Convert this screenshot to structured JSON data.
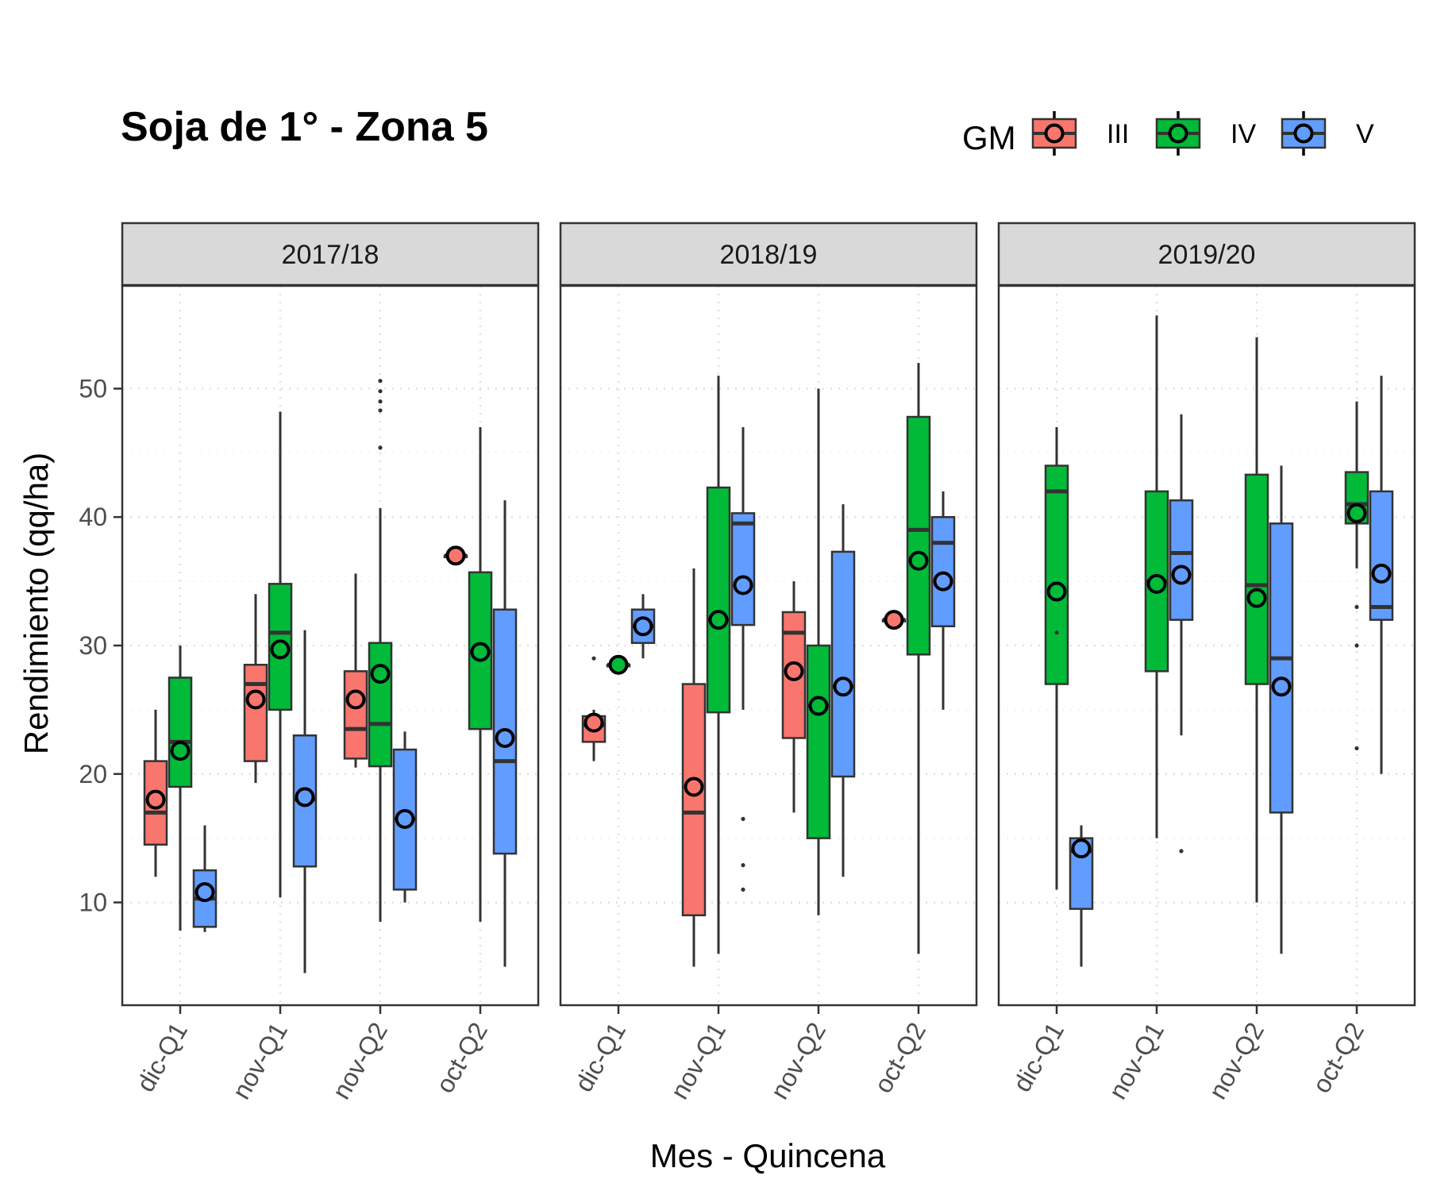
{
  "chart_data": {
    "type": "boxplot",
    "title": "Soja de 1° - Zona 5",
    "xlabel": "Mes - Quincena",
    "ylabel": "Rendimiento (qq/ha)",
    "ylim": [
      2,
      58
    ],
    "yticks": [
      10,
      20,
      30,
      40,
      50
    ],
    "grid": "dotted",
    "legend": {
      "title": "GM",
      "position": "top-right",
      "entries": [
        {
          "key": "III",
          "label": "III",
          "color": "#F8766D"
        },
        {
          "key": "IV",
          "label": "IV",
          "color": "#00BA38"
        },
        {
          "key": "V",
          "label": "V",
          "color": "#619CFF"
        }
      ]
    },
    "categories": [
      "dic-Q1",
      "nov-Q1",
      "nov-Q2",
      "oct-Q2"
    ],
    "facets": [
      {
        "label": "2017/18",
        "groups": [
          {
            "category": "dic-Q1",
            "gm": "III",
            "min": 12,
            "q1": 14.5,
            "median": 17,
            "q3": 21,
            "max": 25,
            "mean": 18,
            "outliers": []
          },
          {
            "category": "dic-Q1",
            "gm": "IV",
            "min": 7.8,
            "q1": 19,
            "median": 22.5,
            "q3": 27.5,
            "max": 30,
            "mean": 21.8,
            "outliers": []
          },
          {
            "category": "dic-Q1",
            "gm": "V",
            "min": 7.7,
            "q1": 8.1,
            "median": 10.3,
            "q3": 12.5,
            "max": 16,
            "mean": 10.8,
            "outliers": []
          },
          {
            "category": "nov-Q1",
            "gm": "III",
            "min": 19.3,
            "q1": 21,
            "median": 27,
            "q3": 28.5,
            "max": 34,
            "mean": 25.8,
            "outliers": []
          },
          {
            "category": "nov-Q1",
            "gm": "IV",
            "min": 10.4,
            "q1": 25,
            "median": 31,
            "q3": 34.8,
            "max": 48.2,
            "mean": 29.7,
            "outliers": []
          },
          {
            "category": "nov-Q1",
            "gm": "V",
            "min": 4.5,
            "q1": 12.8,
            "median": 18,
            "q3": 23,
            "max": 31.2,
            "mean": 18.2,
            "outliers": []
          },
          {
            "category": "nov-Q2",
            "gm": "III",
            "min": 20.5,
            "q1": 21.2,
            "median": 23.5,
            "q3": 28,
            "max": 35.6,
            "mean": 25.8,
            "outliers": []
          },
          {
            "category": "nov-Q2",
            "gm": "IV",
            "min": 8.5,
            "q1": 20.6,
            "median": 23.9,
            "q3": 30.2,
            "max": 40.7,
            "mean": 27.8,
            "outliers": [
              45.4,
              48.3,
              49,
              49.8,
              50.6
            ]
          },
          {
            "category": "nov-Q2",
            "gm": "V",
            "min": 10,
            "q1": 11,
            "median": 16.5,
            "q3": 21.9,
            "max": 23.3,
            "mean": 16.5,
            "outliers": []
          },
          {
            "category": "oct-Q2",
            "gm": "III",
            "min": 37,
            "q1": 37,
            "median": 37,
            "q3": 37,
            "max": 37,
            "mean": 37,
            "outliers": []
          },
          {
            "category": "oct-Q2",
            "gm": "IV",
            "min": 8.5,
            "q1": 23.5,
            "median": 29.5,
            "q3": 35.7,
            "max": 47,
            "mean": 29.5,
            "outliers": []
          },
          {
            "category": "oct-Q2",
            "gm": "V",
            "min": 5,
            "q1": 13.8,
            "median": 21,
            "q3": 32.8,
            "max": 41.3,
            "mean": 22.8,
            "outliers": []
          }
        ]
      },
      {
        "label": "2018/19",
        "groups": [
          {
            "category": "dic-Q1",
            "gm": "III",
            "min": 21,
            "q1": 22.5,
            "median": 23.8,
            "q3": 24.5,
            "max": 25,
            "mean": 24,
            "outliers": [
              29
            ]
          },
          {
            "category": "dic-Q1",
            "gm": "IV",
            "min": 28.5,
            "q1": 28.5,
            "median": 28.5,
            "q3": 28.5,
            "max": 28.5,
            "mean": 28.5,
            "outliers": []
          },
          {
            "category": "dic-Q1",
            "gm": "V",
            "min": 29,
            "q1": 30.2,
            "median": 31.5,
            "q3": 32.8,
            "max": 34,
            "mean": 31.5,
            "outliers": []
          },
          {
            "category": "nov-Q1",
            "gm": "III",
            "min": 5,
            "q1": 9,
            "median": 17,
            "q3": 27,
            "max": 36,
            "mean": 19,
            "outliers": []
          },
          {
            "category": "nov-Q1",
            "gm": "IV",
            "min": 6,
            "q1": 24.8,
            "median": 32,
            "q3": 42.3,
            "max": 51,
            "mean": 32,
            "outliers": []
          },
          {
            "category": "nov-Q1",
            "gm": "V",
            "min": 25,
            "q1": 31.6,
            "median": 39.5,
            "q3": 40.3,
            "max": 47,
            "mean": 34.7,
            "outliers": [
              11,
              12.9,
              16.5
            ]
          },
          {
            "category": "nov-Q2",
            "gm": "III",
            "min": 17,
            "q1": 22.8,
            "median": 31,
            "q3": 32.6,
            "max": 35,
            "mean": 28,
            "outliers": []
          },
          {
            "category": "nov-Q2",
            "gm": "IV",
            "min": 9,
            "q1": 15,
            "median": 25.3,
            "q3": 30,
            "max": 50,
            "mean": 25.3,
            "outliers": []
          },
          {
            "category": "nov-Q2",
            "gm": "V",
            "min": 12,
            "q1": 19.8,
            "median": 26.8,
            "q3": 37.3,
            "max": 41,
            "mean": 26.8,
            "outliers": []
          },
          {
            "category": "oct-Q2",
            "gm": "III",
            "min": 32,
            "q1": 32,
            "median": 32,
            "q3": 32,
            "max": 32,
            "mean": 32,
            "outliers": []
          },
          {
            "category": "oct-Q2",
            "gm": "IV",
            "min": 6,
            "q1": 29.3,
            "median": 39,
            "q3": 47.8,
            "max": 52,
            "mean": 36.6,
            "outliers": []
          },
          {
            "category": "oct-Q2",
            "gm": "V",
            "min": 25,
            "q1": 31.5,
            "median": 38,
            "q3": 40,
            "max": 42,
            "mean": 35,
            "outliers": []
          }
        ]
      },
      {
        "label": "2019/20",
        "groups": [
          {
            "category": "dic-Q1",
            "gm": "IV",
            "min": 11,
            "q1": 27,
            "median": 42,
            "q3": 44,
            "max": 47,
            "mean": 34.2,
            "outliers": [
              31
            ]
          },
          {
            "category": "dic-Q1",
            "gm": "V",
            "min": 5,
            "q1": 9.5,
            "median": 14,
            "q3": 15,
            "max": 16,
            "mean": 14.2,
            "outliers": []
          },
          {
            "category": "nov-Q1",
            "gm": "IV",
            "min": 15,
            "q1": 28,
            "median": 35,
            "q3": 42,
            "max": 55.7,
            "mean": 34.8,
            "outliers": []
          },
          {
            "category": "nov-Q1",
            "gm": "V",
            "min": 23,
            "q1": 32,
            "median": 37.2,
            "q3": 41.3,
            "max": 48,
            "mean": 35.5,
            "outliers": [
              14
            ]
          },
          {
            "category": "nov-Q2",
            "gm": "IV",
            "min": 10,
            "q1": 27,
            "median": 34.7,
            "q3": 43.3,
            "max": 54,
            "mean": 33.7,
            "outliers": []
          },
          {
            "category": "nov-Q2",
            "gm": "V",
            "min": 6,
            "q1": 17,
            "median": 29,
            "q3": 39.5,
            "max": 44,
            "mean": 26.8,
            "outliers": []
          },
          {
            "category": "oct-Q2",
            "gm": "IV",
            "min": 36,
            "q1": 39.5,
            "median": 41,
            "q3": 43.5,
            "max": 49,
            "mean": 40.3,
            "outliers": [
              22,
              30,
              33
            ]
          },
          {
            "category": "oct-Q2",
            "gm": "V",
            "min": 20,
            "q1": 32,
            "median": 33,
            "q3": 42,
            "max": 51,
            "mean": 35.6,
            "outliers": []
          }
        ]
      }
    ]
  }
}
